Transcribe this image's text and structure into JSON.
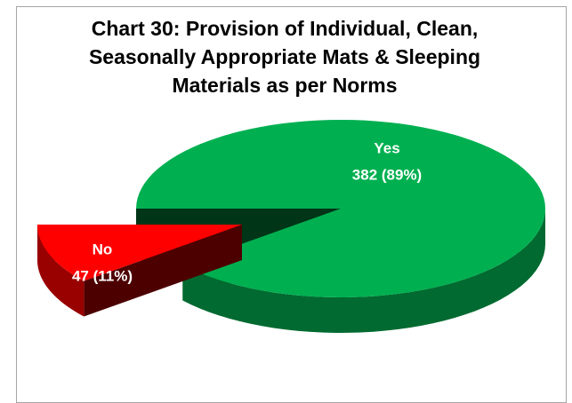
{
  "chart_data": {
    "type": "pie3d",
    "title": "Chart 30: Provision of Individual, Clean, Seasonally Appropriate Mats & Sleeping Materials as per Norms",
    "categories": [
      "Yes",
      "No"
    ],
    "values": [
      382,
      47
    ],
    "value_labels": [
      "382 (89%)",
      "47 (11%)"
    ],
    "colors": [
      "#00b050",
      "#ff0000"
    ],
    "exploded": [
      false,
      true
    ]
  }
}
